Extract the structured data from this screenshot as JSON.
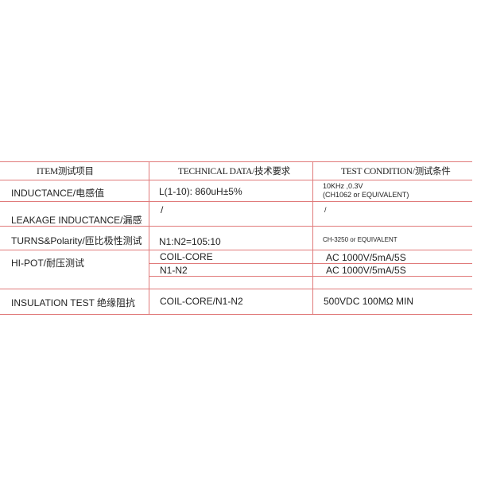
{
  "colors": {
    "grid": "#e07a7a"
  },
  "table": {
    "headers": [
      "ITEM测试项目",
      "TECHNICAL DATA/技术要求",
      "TEST CONDITION/测试条件"
    ],
    "rows": [
      {
        "item": "INDUCTANCE/电感值",
        "data": "L(1-10): 860uH±5%",
        "cond1": "10KHz ,0.3V",
        "cond2": "(CH1062 or  EQUIVALENT)"
      },
      {
        "item": "LEAKAGE INDUCTANCE/漏感",
        "data": "/",
        "cond": "/"
      },
      {
        "item": "TURNS&Polarity/匝比极性测试",
        "data": "N1:N2=105:10",
        "cond": "CH-3250 or  EQUIVALENT"
      },
      {
        "item": "HI-POT/耐压测试",
        "data1": "COIL-CORE",
        "cond1": "AC 1000V/5mA/5S",
        "data2": "N1-N2",
        "cond2": "AC 1000V/5mA/5S"
      },
      {
        "item": "INSULATION TEST  绝缘阻抗",
        "data": "COIL-CORE/N1-N2",
        "cond": "500VDC 100MΩ MIN"
      }
    ]
  }
}
